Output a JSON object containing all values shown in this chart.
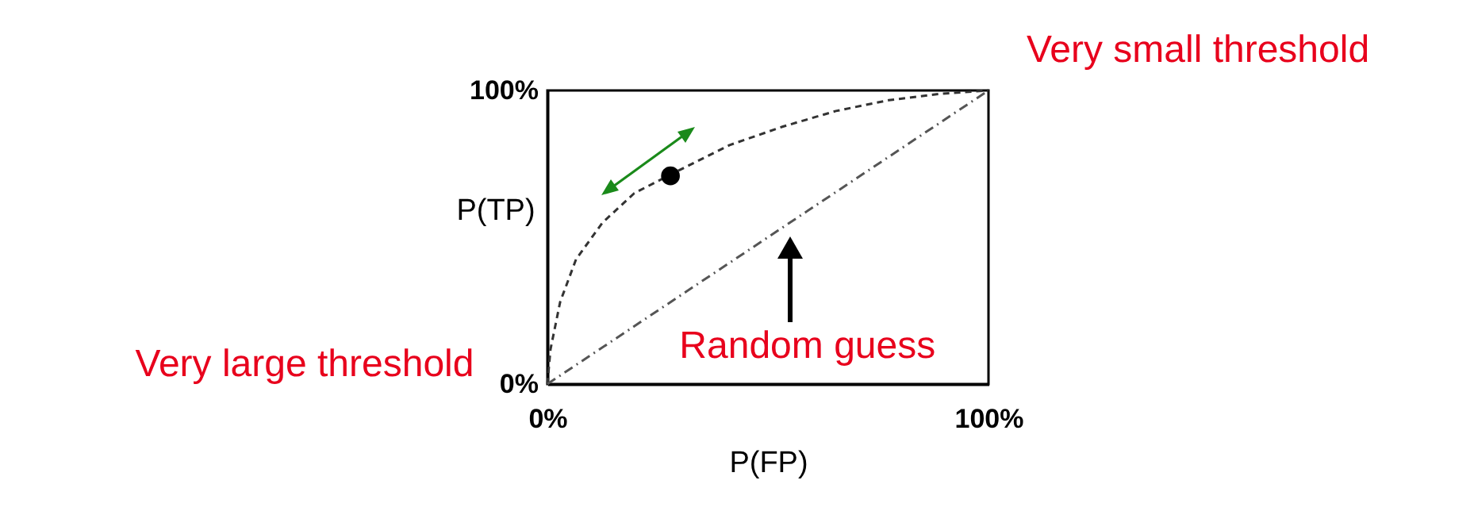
{
  "chart_data": {
    "type": "line",
    "xlabel": "P(FP)",
    "ylabel": "P(TP)",
    "xlim": [
      0,
      100
    ],
    "ylim": [
      0,
      100
    ],
    "xticks": [
      {
        "value": 0,
        "label": "0%"
      },
      {
        "value": 100,
        "label": "100%"
      }
    ],
    "yticks": [
      {
        "value": 0,
        "label": "0%"
      },
      {
        "value": 100,
        "label": "100%"
      }
    ],
    "grid": false,
    "series": [
      {
        "type": "line",
        "color": "#333333",
        "line_style": "dashed",
        "x": [
          0,
          0.7,
          2.9,
          6.5,
          12.5,
          19.7,
          28,
          41.3,
          53.4,
          65.4,
          77.4,
          89.4,
          100
        ],
        "values": [
          0,
          11.8,
          28,
          42.5,
          55,
          65,
          71.4,
          81.4,
          87.7,
          93,
          96.7,
          98.9,
          100
        ]
      },
      {
        "type": "line",
        "color": "#555555",
        "line_style": "dotted",
        "x": [
          0,
          100
        ],
        "values": [
          0,
          100
        ]
      },
      {
        "type": "scatter",
        "color": "#000000",
        "marker": "circle",
        "x": [
          27.9
        ],
        "values": [
          70.9
        ]
      }
    ],
    "annotations": [
      {
        "text": "Very small threshold",
        "x": 100,
        "y": 100
      },
      {
        "text": "Very large threshold",
        "x": 0,
        "y": 0
      },
      {
        "text": "Random guess",
        "x": 55,
        "y": 55
      }
    ]
  }
}
